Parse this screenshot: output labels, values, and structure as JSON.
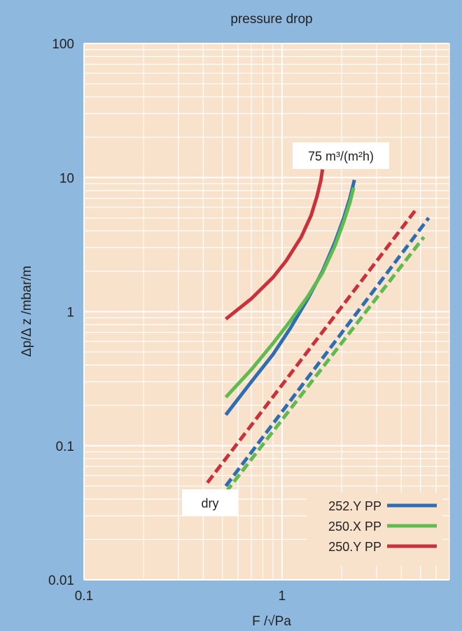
{
  "chart_data": {
    "type": "line",
    "title": "pressure drop",
    "xlabel": "F /√Pa",
    "ylabel": "Δp/Δ z /mbar/m",
    "x_scale": "log",
    "y_scale": "log",
    "xlim": [
      0.1,
      7
    ],
    "ylim": [
      0.01,
      100
    ],
    "x_ticks": [
      "0.1",
      "1"
    ],
    "y_ticks": [
      "100",
      "10",
      "1",
      "0.1",
      "0.01"
    ],
    "grid": true,
    "legend_position": "bottom-right",
    "annotations": {
      "liquid_load": "75 m³/(m²h)",
      "dry": "dry"
    },
    "colors": {
      "background": "#8fb8de",
      "plot_area": "#f9e2cc",
      "grid": "#ffffff",
      "252.Y PP": "#2f6db3",
      "250.X PP": "#5fba4f",
      "250.Y PP": "#c8323d"
    },
    "series": [
      {
        "name": "252.Y PP",
        "condition": "75 m³/(m²h)",
        "style": "solid",
        "points": [
          [
            0.52,
            0.17
          ],
          [
            0.7,
            0.3
          ],
          [
            0.9,
            0.48
          ],
          [
            1.1,
            0.75
          ],
          [
            1.35,
            1.25
          ],
          [
            1.6,
            2.0
          ],
          [
            1.85,
            3.3
          ],
          [
            2.05,
            5.0
          ],
          [
            2.2,
            7.0
          ],
          [
            2.32,
            9.6
          ]
        ]
      },
      {
        "name": "250.X PP",
        "condition": "75 m³/(m²h)",
        "style": "solid",
        "points": [
          [
            0.52,
            0.23
          ],
          [
            0.7,
            0.37
          ],
          [
            0.9,
            0.58
          ],
          [
            1.1,
            0.85
          ],
          [
            1.35,
            1.3
          ],
          [
            1.6,
            1.95
          ],
          [
            1.85,
            3.1
          ],
          [
            2.05,
            4.7
          ],
          [
            2.2,
            6.5
          ],
          [
            2.3,
            8.4
          ]
        ]
      },
      {
        "name": "250.Y PP",
        "condition": "75 m³/(m²h)",
        "style": "solid",
        "points": [
          [
            0.52,
            0.88
          ],
          [
            0.7,
            1.25
          ],
          [
            0.9,
            1.8
          ],
          [
            1.05,
            2.4
          ],
          [
            1.25,
            3.6
          ],
          [
            1.4,
            5.2
          ],
          [
            1.5,
            7.2
          ],
          [
            1.57,
            9.5
          ],
          [
            1.6,
            11.5
          ]
        ]
      },
      {
        "name": "252.Y PP",
        "condition": "dry",
        "style": "dashed",
        "points": [
          [
            0.52,
            0.05
          ],
          [
            5.5,
            5.0
          ]
        ]
      },
      {
        "name": "250.X PP",
        "condition": "dry",
        "style": "dashed",
        "points": [
          [
            0.52,
            0.045
          ],
          [
            5.2,
            3.6
          ]
        ]
      },
      {
        "name": "250.Y PP",
        "condition": "dry",
        "style": "dashed",
        "points": [
          [
            0.42,
            0.053
          ],
          [
            4.8,
            5.9
          ]
        ]
      }
    ]
  }
}
